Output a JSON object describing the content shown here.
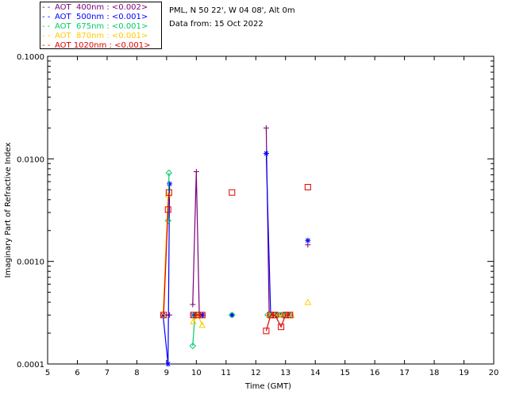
{
  "chart_data": {
    "type": "scatter",
    "title": "",
    "xlabel": "Time (GMT)",
    "ylabel": "Imaginary Part of Refractive Index",
    "xlim": [
      5,
      20
    ],
    "ylim": [
      0.0001,
      0.1
    ],
    "yscale": "log",
    "x_ticks": [
      "5",
      "6",
      "7",
      "8",
      "9",
      "10",
      "11",
      "12",
      "13",
      "14",
      "15",
      "16",
      "17",
      "18",
      "19",
      "20"
    ],
    "y_ticks": [
      "0.0001",
      "0.0010",
      "0.0100",
      "0.1000"
    ],
    "info_lines": [
      "PML, N 50 22', W 04 08', Alt 0m",
      "Data from: 15 Oct 2022"
    ],
    "legend_placement": "top-left",
    "series": [
      {
        "name": "AOT  400nm : <0.002>",
        "color": "#7b007b",
        "marker": "plus",
        "x": [
          8.88,
          9.1,
          9.88,
          10.0,
          10.1,
          10.22,
          11.2,
          12.35,
          12.45,
          12.55,
          12.7,
          12.85,
          13.0,
          13.15,
          13.75
        ],
        "y": [
          0.0003,
          0.0003,
          0.00038,
          0.0075,
          0.0003,
          0.0003,
          0.0003,
          0.02,
          0.0003,
          0.0003,
          0.0003,
          0.0003,
          0.0003,
          0.0003,
          0.00145
        ],
        "line_groups": [
          [
            0,
            1
          ],
          [
            2,
            3,
            4,
            5
          ],
          [
            7,
            8,
            9,
            10,
            11,
            12,
            13
          ]
        ]
      },
      {
        "name": "AOT  500nm : <0.001>",
        "color": "#0000ff",
        "marker": "asterisk",
        "x": [
          8.88,
          9.05,
          9.1,
          9.9,
          10.05,
          10.2,
          11.2,
          12.35,
          12.5,
          12.65,
          12.8,
          12.95,
          13.1,
          13.75
        ],
        "y": [
          0.0003,
          0.0001,
          0.0057,
          0.0003,
          0.0003,
          0.0003,
          0.0003,
          0.0113,
          0.0003,
          0.0003,
          0.0003,
          0.0003,
          0.0003,
          0.0016
        ],
        "line_groups": [
          [
            0,
            1,
            2
          ],
          [
            3,
            4,
            5
          ],
          [
            7,
            8,
            9,
            10,
            11,
            12
          ]
        ]
      },
      {
        "name": "AOT  675nm : <0.001>",
        "color": "#00cc66",
        "marker": "diamond",
        "x": [
          9.05,
          9.08,
          9.88,
          9.95,
          10.05,
          11.2,
          12.4,
          12.55,
          12.7,
          12.85,
          13.0,
          13.15
        ],
        "y": [
          0.0025,
          0.0073,
          0.00015,
          0.0003,
          0.0003,
          0.0003,
          0.0003,
          0.0003,
          0.0003,
          0.0003,
          0.0003,
          0.0003
        ],
        "line_groups": [
          [
            0,
            1
          ],
          [
            2,
            3,
            4
          ],
          [
            6,
            7,
            8,
            9,
            10,
            11
          ]
        ]
      },
      {
        "name": "AOT  870nm : <0.001>",
        "color": "#ffcc00",
        "marker": "triangle",
        "x": [
          8.88,
          9.05,
          9.9,
          10.05,
          10.2,
          12.45,
          12.6,
          12.75,
          12.9,
          13.05,
          13.2,
          13.75
        ],
        "y": [
          0.0003,
          0.0045,
          0.00026,
          0.0003,
          0.00024,
          0.0003,
          0.0003,
          0.0003,
          0.0003,
          0.0003,
          0.0003,
          0.0004
        ],
        "line_groups": [
          [
            0,
            1
          ],
          [
            2,
            3,
            4
          ],
          [
            5,
            6,
            7,
            8,
            9,
            10
          ]
        ]
      },
      {
        "name": "AOT 1020nm : <0.001>",
        "color": "#dd0000",
        "marker": "square",
        "x": [
          8.9,
          9.05,
          9.08,
          9.9,
          10.05,
          10.2,
          11.2,
          12.35,
          12.5,
          12.65,
          12.85,
          13.0,
          13.15,
          13.75
        ],
        "y": [
          0.0003,
          0.0032,
          0.0047,
          0.0003,
          0.0003,
          0.0003,
          0.0047,
          0.00021,
          0.0003,
          0.0003,
          0.00023,
          0.0003,
          0.0003,
          0.0053
        ],
        "line_groups": [
          [
            0,
            1,
            2
          ],
          [
            3,
            4,
            5
          ],
          [
            7,
            8,
            9,
            10,
            11,
            12
          ]
        ]
      }
    ]
  }
}
